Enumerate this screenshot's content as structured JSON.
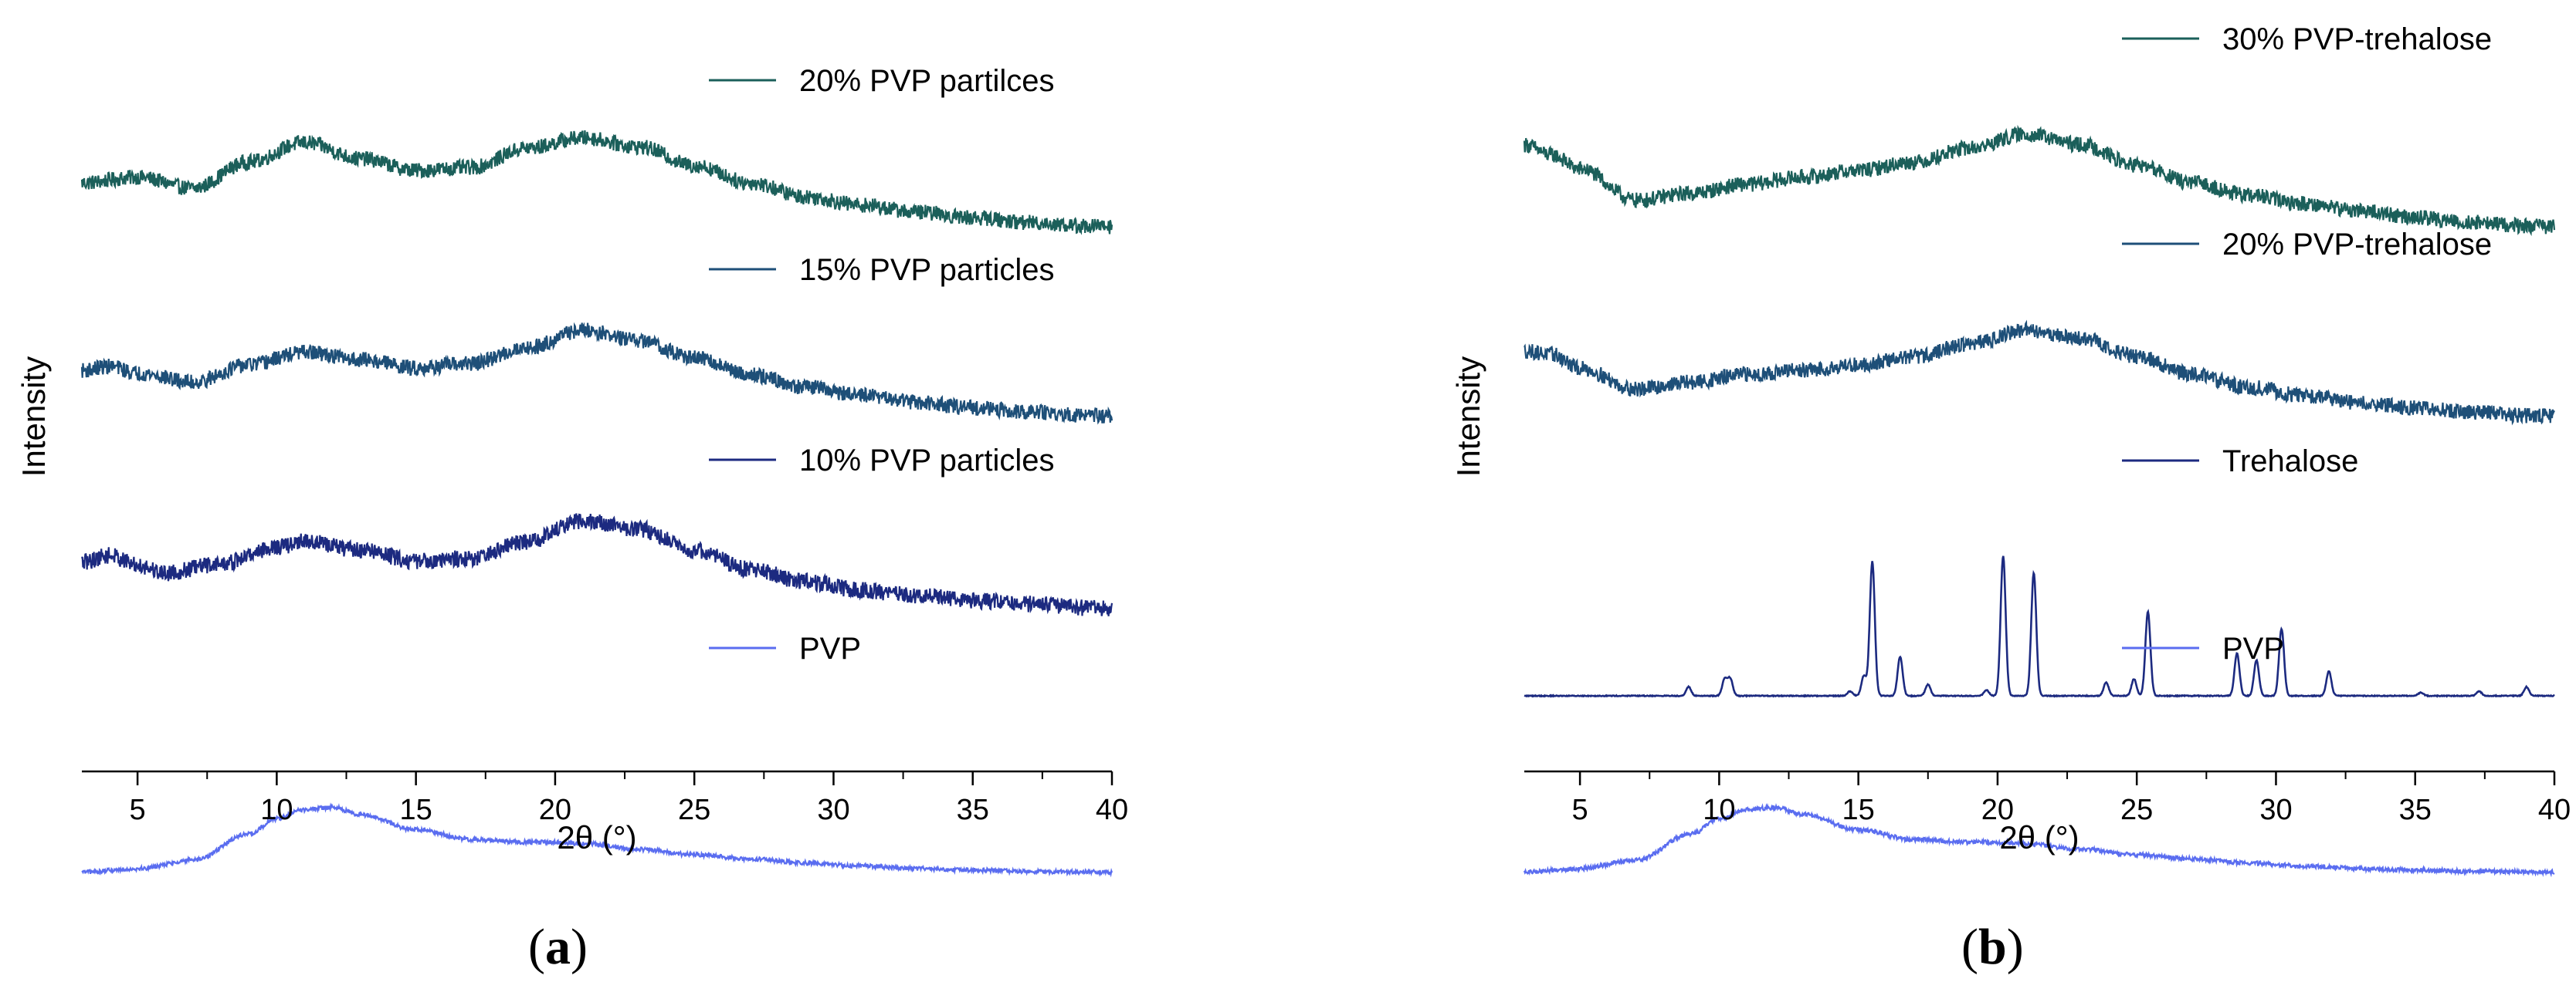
{
  "chart_data": [
    {
      "panel": "a",
      "type": "line",
      "caption_open": "(",
      "caption_letter": "a",
      "caption_close": ")",
      "xlabel": "2θ (°)",
      "ylabel": "Intensity",
      "xlim": [
        3,
        40
      ],
      "xticks": [
        5,
        10,
        15,
        20,
        25,
        30,
        35,
        40
      ],
      "yticks_shown": false,
      "series": [
        {
          "name": "20% PVP partilces",
          "color": "#1b5f5a",
          "noise": 0.11,
          "spikes": false,
          "points": [
            [
              3,
              0.7
            ],
            [
              5,
              0.78
            ],
            [
              7,
              0.62
            ],
            [
              9,
              1.0
            ],
            [
              11,
              1.28
            ],
            [
              13,
              1.05
            ],
            [
              15,
              0.88
            ],
            [
              17,
              0.92
            ],
            [
              19,
              1.2
            ],
            [
              21,
              1.35
            ],
            [
              23,
              1.22
            ],
            [
              25,
              0.95
            ],
            [
              27,
              0.7
            ],
            [
              29,
              0.5
            ],
            [
              31,
              0.38
            ],
            [
              33,
              0.28
            ],
            [
              35,
              0.2
            ],
            [
              37,
              0.13
            ],
            [
              39,
              0.08
            ],
            [
              40,
              0.07
            ]
          ]
        },
        {
          "name": "15% PVP particles",
          "color": "#1e4f78",
          "noise": 0.11,
          "spikes": false,
          "points": [
            [
              3,
              0.72
            ],
            [
              4,
              0.78
            ],
            [
              5,
              0.68
            ],
            [
              7,
              0.55
            ],
            [
              9,
              0.8
            ],
            [
              11,
              0.98
            ],
            [
              13,
              0.88
            ],
            [
              15,
              0.76
            ],
            [
              17,
              0.82
            ],
            [
              19,
              1.05
            ],
            [
              21,
              1.3
            ],
            [
              23,
              1.15
            ],
            [
              25,
              0.9
            ],
            [
              27,
              0.66
            ],
            [
              29,
              0.48
            ],
            [
              31,
              0.36
            ],
            [
              33,
              0.26
            ],
            [
              35,
              0.18
            ],
            [
              37,
              0.12
            ],
            [
              39,
              0.07
            ],
            [
              40,
              0.06
            ]
          ]
        },
        {
          "name": "10% PVP particles",
          "color": "#1c2a80",
          "noise": 0.12,
          "spikes": false,
          "points": [
            [
              3,
              0.7
            ],
            [
              4,
              0.8
            ],
            [
              5,
              0.66
            ],
            [
              6,
              0.55
            ],
            [
              8,
              0.68
            ],
            [
              10,
              0.92
            ],
            [
              11,
              1.0
            ],
            [
              13,
              0.88
            ],
            [
              15,
              0.72
            ],
            [
              17,
              0.76
            ],
            [
              19,
              1.0
            ],
            [
              21,
              1.3
            ],
            [
              23,
              1.18
            ],
            [
              25,
              0.88
            ],
            [
              27,
              0.6
            ],
            [
              29,
              0.42
            ],
            [
              31,
              0.3
            ],
            [
              33,
              0.22
            ],
            [
              35,
              0.15
            ],
            [
              37,
              0.1
            ],
            [
              39,
              0.05
            ],
            [
              40,
              0.04
            ]
          ]
        },
        {
          "name": "PVP",
          "color": "#5a6df0",
          "noise": 0.03,
          "spikes": false,
          "points": [
            [
              3,
              0.05
            ],
            [
              5,
              0.1
            ],
            [
              7,
              0.22
            ],
            [
              9,
              0.6
            ],
            [
              10,
              0.82
            ],
            [
              11,
              0.95
            ],
            [
              12,
              0.98
            ],
            [
              13,
              0.88
            ],
            [
              15,
              0.66
            ],
            [
              17,
              0.52
            ],
            [
              19,
              0.48
            ],
            [
              20,
              0.48
            ],
            [
              21,
              0.46
            ],
            [
              23,
              0.38
            ],
            [
              25,
              0.3
            ],
            [
              27,
              0.24
            ],
            [
              29,
              0.18
            ],
            [
              31,
              0.14
            ],
            [
              33,
              0.1
            ],
            [
              35,
              0.08
            ],
            [
              37,
              0.06
            ],
            [
              39,
              0.05
            ],
            [
              40,
              0.05
            ]
          ]
        }
      ]
    },
    {
      "panel": "b",
      "type": "line",
      "caption_open": "(",
      "caption_letter": "b",
      "caption_close": ")",
      "xlabel": "2θ (°)",
      "ylabel": "Intensity",
      "xlim": [
        3,
        40
      ],
      "xticks": [
        5,
        10,
        15,
        20,
        25,
        30,
        35,
        40
      ],
      "yticks_shown": false,
      "series": [
        {
          "name": "30% PVP-trehalose",
          "color": "#1b5f5a",
          "noise": 0.11,
          "spikes": false,
          "points": [
            [
              3,
              1.25
            ],
            [
              4,
              1.1
            ],
            [
              5,
              0.9
            ],
            [
              7,
              0.45
            ],
            [
              9,
              0.55
            ],
            [
              11,
              0.68
            ],
            [
              13,
              0.78
            ],
            [
              15,
              0.88
            ],
            [
              17,
              1.0
            ],
            [
              19,
              1.2
            ],
            [
              21,
              1.4
            ],
            [
              23,
              1.25
            ],
            [
              25,
              0.95
            ],
            [
              27,
              0.7
            ],
            [
              29,
              0.52
            ],
            [
              31,
              0.4
            ],
            [
              33,
              0.3
            ],
            [
              35,
              0.2
            ],
            [
              37,
              0.13
            ],
            [
              39,
              0.08
            ],
            [
              40,
              0.07
            ]
          ]
        },
        {
          "name": "20% PVP-trehalose",
          "color": "#1e4f78",
          "noise": 0.11,
          "spikes": false,
          "points": [
            [
              3,
              1.0
            ],
            [
              4,
              0.95
            ],
            [
              5,
              0.75
            ],
            [
              7,
              0.45
            ],
            [
              9,
              0.55
            ],
            [
              11,
              0.66
            ],
            [
              13,
              0.72
            ],
            [
              15,
              0.8
            ],
            [
              17,
              0.92
            ],
            [
              19,
              1.1
            ],
            [
              21,
              1.3
            ],
            [
              23,
              1.18
            ],
            [
              25,
              0.92
            ],
            [
              27,
              0.66
            ],
            [
              29,
              0.48
            ],
            [
              31,
              0.36
            ],
            [
              33,
              0.26
            ],
            [
              35,
              0.18
            ],
            [
              37,
              0.12
            ],
            [
              39,
              0.07
            ],
            [
              40,
              0.06
            ]
          ]
        },
        {
          "name": "Trehalose",
          "color": "#1c2a80",
          "noise": 0.004,
          "spikes": true,
          "points": [
            [
              3,
              0.0
            ],
            [
              40,
              0.0
            ]
          ],
          "peaks": [
            [
              8.9,
              0.08
            ],
            [
              10.2,
              0.15
            ],
            [
              10.4,
              0.15
            ],
            [
              14.7,
              0.04
            ],
            [
              15.2,
              0.18
            ],
            [
              15.5,
              1.2
            ],
            [
              16.5,
              0.35
            ],
            [
              17.5,
              0.1
            ],
            [
              19.6,
              0.05
            ],
            [
              20.2,
              1.25
            ],
            [
              21.3,
              1.1
            ],
            [
              23.9,
              0.12
            ],
            [
              24.9,
              0.15
            ],
            [
              25.4,
              0.75
            ],
            [
              28.6,
              0.38
            ],
            [
              29.3,
              0.32
            ],
            [
              30.2,
              0.6
            ],
            [
              31.9,
              0.22
            ],
            [
              35.2,
              0.03
            ],
            [
              37.3,
              0.04
            ],
            [
              39.0,
              0.08
            ]
          ]
        },
        {
          "name": "PVP",
          "color": "#5a6df0",
          "noise": 0.03,
          "spikes": false,
          "points": [
            [
              3,
              0.05
            ],
            [
              5,
              0.1
            ],
            [
              7,
              0.22
            ],
            [
              9,
              0.6
            ],
            [
              10,
              0.82
            ],
            [
              11,
              0.95
            ],
            [
              12,
              0.98
            ],
            [
              13,
              0.88
            ],
            [
              15,
              0.66
            ],
            [
              17,
              0.52
            ],
            [
              19,
              0.48
            ],
            [
              20,
              0.48
            ],
            [
              21,
              0.46
            ],
            [
              23,
              0.38
            ],
            [
              25,
              0.3
            ],
            [
              27,
              0.24
            ],
            [
              29,
              0.18
            ],
            [
              31,
              0.14
            ],
            [
              33,
              0.1
            ],
            [
              35,
              0.08
            ],
            [
              37,
              0.06
            ],
            [
              39,
              0.05
            ],
            [
              40,
              0.05
            ]
          ]
        }
      ]
    }
  ]
}
